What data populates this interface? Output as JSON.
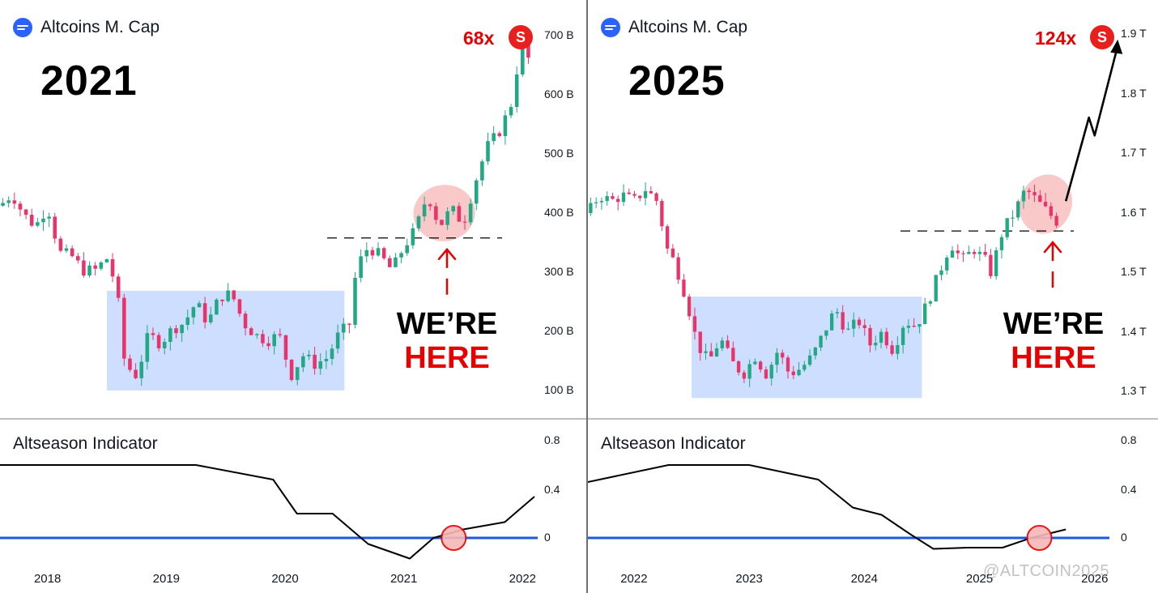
{
  "colors": {
    "up": "#22a884",
    "down": "#e8346a",
    "range_box": "#c5d8ff",
    "zero_line": "#1f57e0",
    "highlight": "#f7b7b7",
    "accent_red": "#e60000",
    "badge_red": "#e8201d",
    "logo_blue": "#2962ff"
  },
  "icons": {
    "logo": "tradingview-style-logo",
    "badge": "s-badge"
  },
  "watermark": "@ALTCOIN2025",
  "left": {
    "title": "Altcoins M. Cap",
    "year": "2021",
    "multiplier": "68x",
    "badge": "S",
    "callout_line1": "WE’RE",
    "callout_line2": "HERE",
    "y_ticks": [
      "700 B",
      "600 B",
      "500 B",
      "400 B",
      "300 B",
      "200 B",
      "100 B"
    ],
    "indicator_title": "Altseason Indicator",
    "indicator_ticks": [
      "0.8",
      "0.4",
      "0"
    ],
    "x_ticks": [
      "2018",
      "2019",
      "2020",
      "2021",
      "2022"
    ]
  },
  "right": {
    "title": "Altcoins M. Cap",
    "year": "2025",
    "multiplier": "124x",
    "badge": "S",
    "callout_line1": "WE’RE",
    "callout_line2": "HERE",
    "y_ticks": [
      "1.9 T",
      "1.8 T",
      "1.7 T",
      "1.6 T",
      "1.5 T",
      "1.4 T",
      "1.3 T"
    ],
    "indicator_title": "Altseason Indicator",
    "indicator_ticks": [
      "0.8",
      "0.4",
      "0"
    ],
    "x_ticks": [
      "2022",
      "2023",
      "2024",
      "2025",
      "2026"
    ]
  },
  "chart_data": [
    {
      "type": "candlestick",
      "title": "Altcoins M. Cap",
      "unit": "B",
      "x_range": [
        2017.6,
        2022.1
      ],
      "y_range": [
        95,
        700
      ],
      "support_level": 355,
      "range_box": {
        "x": [
          2018.5,
          2020.5
        ],
        "y": [
          95,
          265
        ]
      },
      "highlight": {
        "x": [
          2021.08,
          2021.6
        ],
        "y": [
          355,
          440
        ]
      },
      "path": [
        [
          2017.6,
          410
        ],
        [
          2017.7,
          430
        ],
        [
          2017.8,
          395
        ],
        [
          2017.9,
          375
        ],
        [
          2018.0,
          410
        ],
        [
          2018.1,
          330
        ],
        [
          2018.2,
          325
        ],
        [
          2018.3,
          300
        ],
        [
          2018.4,
          300
        ],
        [
          2018.5,
          320
        ],
        [
          2018.55,
          290
        ],
        [
          2018.6,
          240
        ],
        [
          2018.65,
          140
        ],
        [
          2018.75,
          120
        ],
        [
          2018.85,
          190
        ],
        [
          2018.95,
          175
        ],
        [
          2019.05,
          200
        ],
        [
          2019.15,
          210
        ],
        [
          2019.25,
          245
        ],
        [
          2019.35,
          210
        ],
        [
          2019.45,
          255
        ],
        [
          2019.55,
          260
        ],
        [
          2019.65,
          210
        ],
        [
          2019.75,
          190
        ],
        [
          2019.85,
          180
        ],
        [
          2019.95,
          190
        ],
        [
          2020.05,
          120
        ],
        [
          2020.15,
          155
        ],
        [
          2020.25,
          140
        ],
        [
          2020.35,
          150
        ],
        [
          2020.45,
          190
        ],
        [
          2020.55,
          210
        ],
        [
          2020.6,
          305
        ],
        [
          2020.7,
          340
        ],
        [
          2020.8,
          325
        ],
        [
          2020.9,
          300
        ],
        [
          2021.0,
          340
        ],
        [
          2021.1,
          370
        ],
        [
          2021.2,
          430
        ],
        [
          2021.3,
          375
        ],
        [
          2021.4,
          405
        ],
        [
          2021.5,
          380
        ],
        [
          2021.6,
          450
        ],
        [
          2021.7,
          510
        ],
        [
          2021.8,
          535
        ],
        [
          2021.9,
          580
        ],
        [
          2021.95,
          640
        ],
        [
          2022.0,
          685
        ],
        [
          2022.05,
          660
        ]
      ],
      "indicator": {
        "label": "Altseason Indicator",
        "y_range": [
          -0.2,
          0.8
        ],
        "points": [
          [
            2017.6,
            0.6
          ],
          [
            2019.0,
            0.6
          ],
          [
            2019.25,
            0.6
          ],
          [
            2019.9,
            0.48
          ],
          [
            2020.1,
            0.2
          ],
          [
            2020.4,
            0.2
          ],
          [
            2020.7,
            -0.05
          ],
          [
            2021.05,
            -0.17
          ],
          [
            2021.25,
            0.0
          ],
          [
            2021.5,
            0.07
          ],
          [
            2021.85,
            0.13
          ],
          [
            2022.1,
            0.34
          ]
        ],
        "zero_line": 0,
        "marker_x": 2021.42
      },
      "x_ticks": [
        2018,
        2019,
        2020,
        2021,
        2022
      ]
    },
    {
      "type": "candlestick",
      "title": "Altcoins M. Cap",
      "unit": "T",
      "x_range": [
        2021.6,
        2026.1
      ],
      "y_range": [
        1.3,
        1.9
      ],
      "support_level": 1.57,
      "range_box": {
        "x": [
          2022.5,
          2024.5
        ],
        "y": [
          1.29,
          1.46
        ]
      },
      "highlight": {
        "x": [
          2025.35,
          2025.8
        ],
        "y": [
          1.57,
          1.66
        ]
      },
      "projection": [
        [
          2025.75,
          1.62
        ],
        [
          2025.95,
          1.76
        ],
        [
          2026.0,
          1.73
        ],
        [
          2026.2,
          1.88
        ]
      ],
      "path": [
        [
          2021.6,
          1.6
        ],
        [
          2021.7,
          1.63
        ],
        [
          2021.8,
          1.62
        ],
        [
          2021.9,
          1.63
        ],
        [
          2022.0,
          1.62
        ],
        [
          2022.1,
          1.64
        ],
        [
          2022.2,
          1.62
        ],
        [
          2022.3,
          1.53
        ],
        [
          2022.35,
          1.52
        ],
        [
          2022.45,
          1.46
        ],
        [
          2022.55,
          1.38
        ],
        [
          2022.65,
          1.35
        ],
        [
          2022.75,
          1.39
        ],
        [
          2022.85,
          1.35
        ],
        [
          2022.95,
          1.33
        ],
        [
          2023.05,
          1.36
        ],
        [
          2023.15,
          1.33
        ],
        [
          2023.25,
          1.37
        ],
        [
          2023.35,
          1.33
        ],
        [
          2023.45,
          1.34
        ],
        [
          2023.55,
          1.36
        ],
        [
          2023.65,
          1.4
        ],
        [
          2023.75,
          1.44
        ],
        [
          2023.85,
          1.4
        ],
        [
          2023.95,
          1.42
        ],
        [
          2024.05,
          1.38
        ],
        [
          2024.15,
          1.4
        ],
        [
          2024.25,
          1.37
        ],
        [
          2024.35,
          1.42
        ],
        [
          2024.45,
          1.41
        ],
        [
          2024.55,
          1.45
        ],
        [
          2024.65,
          1.5
        ],
        [
          2024.75,
          1.55
        ],
        [
          2024.85,
          1.52
        ],
        [
          2024.95,
          1.54
        ],
        [
          2025.05,
          1.52
        ],
        [
          2025.1,
          1.5
        ],
        [
          2025.2,
          1.57
        ],
        [
          2025.3,
          1.6
        ],
        [
          2025.4,
          1.64
        ],
        [
          2025.5,
          1.62
        ],
        [
          2025.6,
          1.6
        ],
        [
          2025.7,
          1.58
        ],
        [
          2025.75,
          1.62
        ]
      ],
      "indicator": {
        "label": "Altseason Indicator",
        "y_range": [
          -0.2,
          0.8
        ],
        "points": [
          [
            2021.6,
            0.46
          ],
          [
            2022.3,
            0.6
          ],
          [
            2023.0,
            0.6
          ],
          [
            2023.6,
            0.48
          ],
          [
            2023.9,
            0.25
          ],
          [
            2024.15,
            0.19
          ],
          [
            2024.4,
            0.03
          ],
          [
            2024.6,
            -0.09
          ],
          [
            2024.9,
            -0.08
          ],
          [
            2025.2,
            -0.08
          ],
          [
            2025.45,
            0.0
          ],
          [
            2025.75,
            0.07
          ]
        ],
        "zero_line": 0,
        "marker_x": 2025.52
      },
      "x_ticks": [
        2022,
        2023,
        2024,
        2025,
        2026
      ]
    }
  ]
}
